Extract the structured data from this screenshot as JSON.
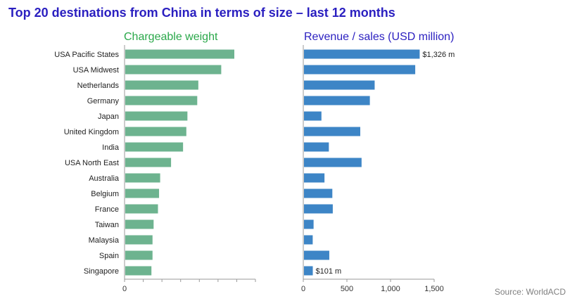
{
  "title": "Top 20 destinations from China in terms of size – last 12 months",
  "source": "Source: WorldACD",
  "colors": {
    "title": "#2a1fc0",
    "left_bar": "#6db38f",
    "right_bar": "#3d85c6",
    "left_title": "#2aa84a",
    "right_title": "#2a1fc0"
  },
  "chart_data": [
    {
      "type": "bar",
      "orientation": "horizontal",
      "title": "Chargeable weight",
      "categories": [
        "USA Pacific States",
        "USA Midwest",
        "Netherlands",
        "Germany",
        "Japan",
        "United Kingdom",
        "India",
        "USA North East",
        "Australia",
        "Belgium",
        "France",
        "Taiwan",
        "Malaysia",
        "Spain",
        "Singapore"
      ],
      "values": [
        100,
        88,
        67,
        66,
        57,
        56,
        53,
        42,
        32,
        31,
        30,
        26,
        25,
        25,
        24
      ],
      "x_ticks": [
        "0"
      ],
      "xlim": [
        0,
        120
      ],
      "grid": false
    },
    {
      "type": "bar",
      "orientation": "horizontal",
      "title": "Revenue / sales (USD million)",
      "categories": [
        "USA Pacific States",
        "USA Midwest",
        "Netherlands",
        "Germany",
        "Japan",
        "United Kingdom",
        "India",
        "USA North East",
        "Australia",
        "Belgium",
        "France",
        "Taiwan",
        "Malaysia",
        "Spain",
        "Singapore"
      ],
      "values": [
        1326,
        1275,
        810,
        755,
        200,
        645,
        285,
        660,
        235,
        325,
        330,
        110,
        100,
        290,
        101
      ],
      "data_labels": {
        "0": "$1,326 m",
        "14": "$101 m"
      },
      "x_ticks": [
        "0",
        "500",
        "1,000",
        "1,500"
      ],
      "xlim": [
        0,
        1500
      ],
      "grid": false
    }
  ]
}
